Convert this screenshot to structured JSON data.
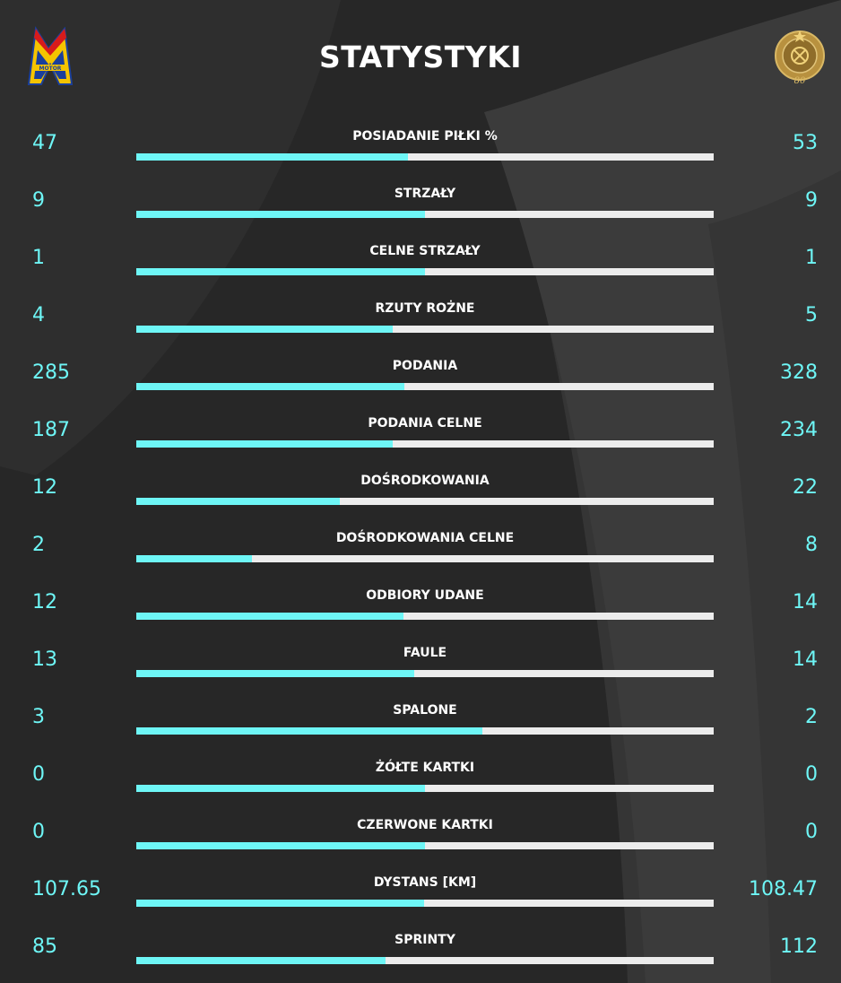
{
  "header": {
    "title": "STATYSTYKI",
    "home_logo_text": "MOTOR",
    "home_logo_icon": "motor-lublin-crest-icon",
    "away_logo_icon": "gold-anniversary-crest-icon",
    "away_logo_text": "80"
  },
  "colors": {
    "background": "#272727",
    "accent": "#6ef6f6",
    "bar_track": "#ececec",
    "text": "#ffffff"
  },
  "stats": [
    {
      "label": "POSIADANIE PIŁKI %",
      "home": "47",
      "away": "53",
      "home_share": 0.47
    },
    {
      "label": "STRZAŁY",
      "home": "9",
      "away": "9",
      "home_share": 0.5
    },
    {
      "label": "CELNE STRZAŁY",
      "home": "1",
      "away": "1",
      "home_share": 0.5
    },
    {
      "label": "RZUTY ROŻNE",
      "home": "4",
      "away": "5",
      "home_share": 0.444
    },
    {
      "label": "PODANIA",
      "home": "285",
      "away": "328",
      "home_share": 0.465
    },
    {
      "label": "PODANIA CELNE",
      "home": "187",
      "away": "234",
      "home_share": 0.444
    },
    {
      "label": "DOŚRODKOWANIA",
      "home": "12",
      "away": "22",
      "home_share": 0.353
    },
    {
      "label": "DOŚRODKOWANIA CELNE",
      "home": "2",
      "away": "8",
      "home_share": 0.2
    },
    {
      "label": "ODBIORY UDANE",
      "home": "12",
      "away": "14",
      "home_share": 0.462
    },
    {
      "label": "FAULE",
      "home": "13",
      "away": "14",
      "home_share": 0.481
    },
    {
      "label": "SPALONE",
      "home": "3",
      "away": "2",
      "home_share": 0.6
    },
    {
      "label": "ŻÓŁTE KARTKI",
      "home": "0",
      "away": "0",
      "home_share": 0.5
    },
    {
      "label": "CZERWONE KARTKI",
      "home": "0",
      "away": "0",
      "home_share": 0.5
    },
    {
      "label": "DYSTANS [KM]",
      "home": "107.65",
      "away": "108.47",
      "home_share": 0.498
    },
    {
      "label": "SPRINTY",
      "home": "85",
      "away": "112",
      "home_share": 0.431
    }
  ]
}
